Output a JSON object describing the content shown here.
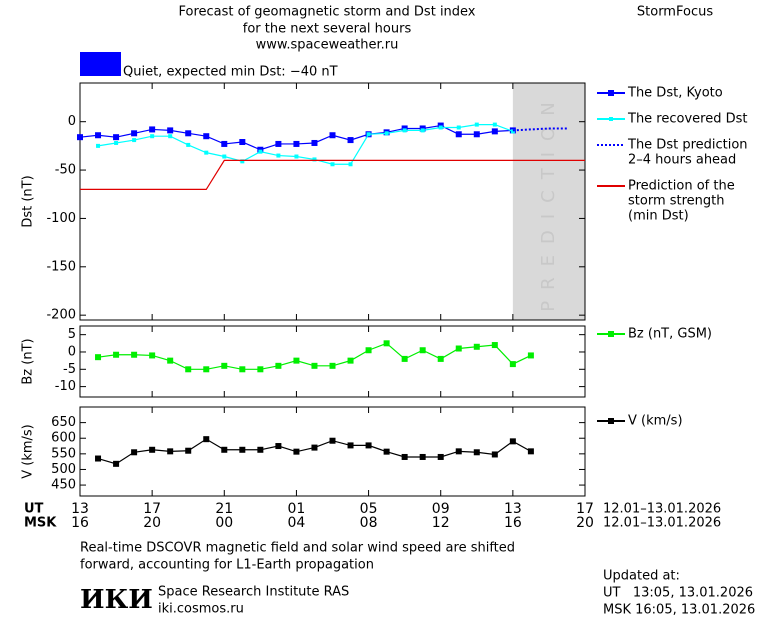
{
  "header": {
    "title": [
      "Forecast of geomagnetic storm and Dst index",
      "for the next several hours",
      "www.spaceweather.ru"
    ],
    "brand": "StormFocus"
  },
  "chart_data": [
    {
      "type": "line",
      "y_label": "Dst (nT)",
      "xlim": [
        0,
        28
      ],
      "ylim": [
        -205,
        40
      ],
      "yticks": [
        0,
        -50,
        -100,
        -150,
        -200
      ],
      "status": {
        "color": "#0000ff",
        "label": "Quiet, expected min Dst: −40 nT"
      },
      "prediction_region": {
        "x": [
          24,
          28
        ],
        "label": "PREDICTION",
        "color": "#d9d9d9"
      },
      "series": [
        {
          "name": [
            "The Dst, Kyoto"
          ],
          "color": "#0000ff",
          "marker": "square",
          "dash": "solid",
          "x": [
            0,
            1,
            2,
            3,
            4,
            5,
            6,
            7,
            8,
            9,
            10,
            11,
            12,
            13,
            14,
            15,
            16,
            17,
            18,
            19,
            20,
            21,
            22,
            23,
            24
          ],
          "values": [
            -16,
            -14,
            -16,
            -12,
            -8,
            -9,
            -12,
            -15,
            -23,
            -21,
            -29,
            -23,
            -23,
            -22,
            -14,
            -19,
            -13,
            -11,
            -7,
            -7,
            -4,
            -13,
            -13,
            -10,
            -9
          ]
        },
        {
          "name": [
            "The recovered Dst"
          ],
          "color": "#00ffff",
          "marker": "small-square",
          "dash": "solid",
          "x": [
            1,
            2,
            3,
            4,
            5,
            6,
            7,
            8,
            9,
            10,
            11,
            12,
            13,
            14,
            15,
            16,
            17,
            18,
            19,
            20,
            21,
            22,
            23,
            24
          ],
          "values": [
            -25,
            -22,
            -19,
            -15,
            -15,
            -24,
            -32,
            -36,
            -41,
            -31,
            -35,
            -36,
            -39,
            -44,
            -44,
            -13,
            -12,
            -9,
            -9,
            -6,
            -6,
            -3,
            -3,
            -10
          ]
        },
        {
          "name": [
            "The Dst prediction",
            "2–4 hours ahead"
          ],
          "color": "#0000ff",
          "marker": "none",
          "dash": "dotted",
          "x": [
            24,
            25,
            26,
            27
          ],
          "values": [
            -9,
            -8,
            -7,
            -7
          ]
        },
        {
          "name": [
            "Prediction of the",
            "storm strength",
            "(min Dst)"
          ],
          "color": "#e00000",
          "marker": "none",
          "dash": "solid",
          "x": [
            0,
            7,
            8,
            28
          ],
          "values": [
            -70,
            -70,
            -40,
            -40
          ]
        }
      ]
    },
    {
      "type": "line",
      "y_label": "Bz (nT)",
      "xlim": [
        0,
        28
      ],
      "ylim": [
        -13,
        7.5
      ],
      "yticks": [
        5,
        0,
        -5,
        -10
      ],
      "series": [
        {
          "name": [
            "Bz (nT, GSM)"
          ],
          "color": "#00ee00",
          "marker": "square",
          "dash": "solid",
          "x": [
            1,
            2,
            3,
            4,
            5,
            6,
            7,
            8,
            9,
            10,
            11,
            12,
            13,
            14,
            15,
            16,
            17,
            18,
            19,
            20,
            21,
            22,
            23,
            24,
            25
          ],
          "values": [
            -1.5,
            -0.8,
            -0.8,
            -1,
            -2.5,
            -5,
            -5,
            -4,
            -5,
            -5,
            -4,
            -2.5,
            -4,
            -4,
            -2.5,
            0.5,
            2.5,
            -2,
            0.5,
            -2,
            1,
            1.5,
            2,
            -3.5,
            -1
          ]
        }
      ]
    },
    {
      "type": "line",
      "y_label": "V (km/s)",
      "xlim": [
        0,
        28
      ],
      "ylim": [
        415,
        700
      ],
      "yticks": [
        650,
        600,
        550,
        500,
        450
      ],
      "xticks": [
        {
          "value": 0,
          "label": "13"
        },
        {
          "value": 4,
          "label": "17"
        },
        {
          "value": 8,
          "label": "21"
        },
        {
          "value": 12,
          "label": "01"
        },
        {
          "value": 16,
          "label": "05"
        },
        {
          "value": 20,
          "label": "09"
        },
        {
          "value": 24,
          "label": "13"
        },
        {
          "value": 28,
          "label": "17"
        }
      ],
      "xticks_msk": [
        {
          "value": 0,
          "label": "16"
        },
        {
          "value": 4,
          "label": "20"
        },
        {
          "value": 8,
          "label": "00"
        },
        {
          "value": 12,
          "label": "04"
        },
        {
          "value": 16,
          "label": "08"
        },
        {
          "value": 20,
          "label": "12"
        },
        {
          "value": 24,
          "label": "16"
        },
        {
          "value": 28,
          "label": "20"
        }
      ],
      "ut_label": "UT",
      "msk_label": "MSK",
      "ut_dates": "12.01–13.01.2026",
      "msk_dates": "12.01–13.01.2026",
      "series": [
        {
          "name": [
            "V (km/s)"
          ],
          "color": "#000000",
          "marker": "square",
          "dash": "solid",
          "x": [
            1,
            2,
            3,
            4,
            5,
            6,
            7,
            8,
            9,
            10,
            11,
            12,
            13,
            14,
            15,
            16,
            17,
            18,
            19,
            20,
            21,
            22,
            23,
            24,
            25
          ],
          "values": [
            535,
            518,
            555,
            563,
            558,
            560,
            597,
            563,
            563,
            563,
            575,
            557,
            570,
            592,
            577,
            577,
            557,
            540,
            540,
            540,
            558,
            555,
            548,
            590,
            558
          ]
        }
      ]
    }
  ],
  "footer": {
    "note": [
      "Real-time DSCOVR magnetic field and solar wind speed are shifted",
      "forward, accounting for L1-Earth propagation"
    ],
    "logo": "ИКИ",
    "institute": "Space Research Institute RAS",
    "url": "iki.cosmos.ru",
    "updated": [
      "Updated at:",
      "UT   13:05, 13.01.2026",
      "MSK 16:05, 13.01.2026"
    ]
  }
}
